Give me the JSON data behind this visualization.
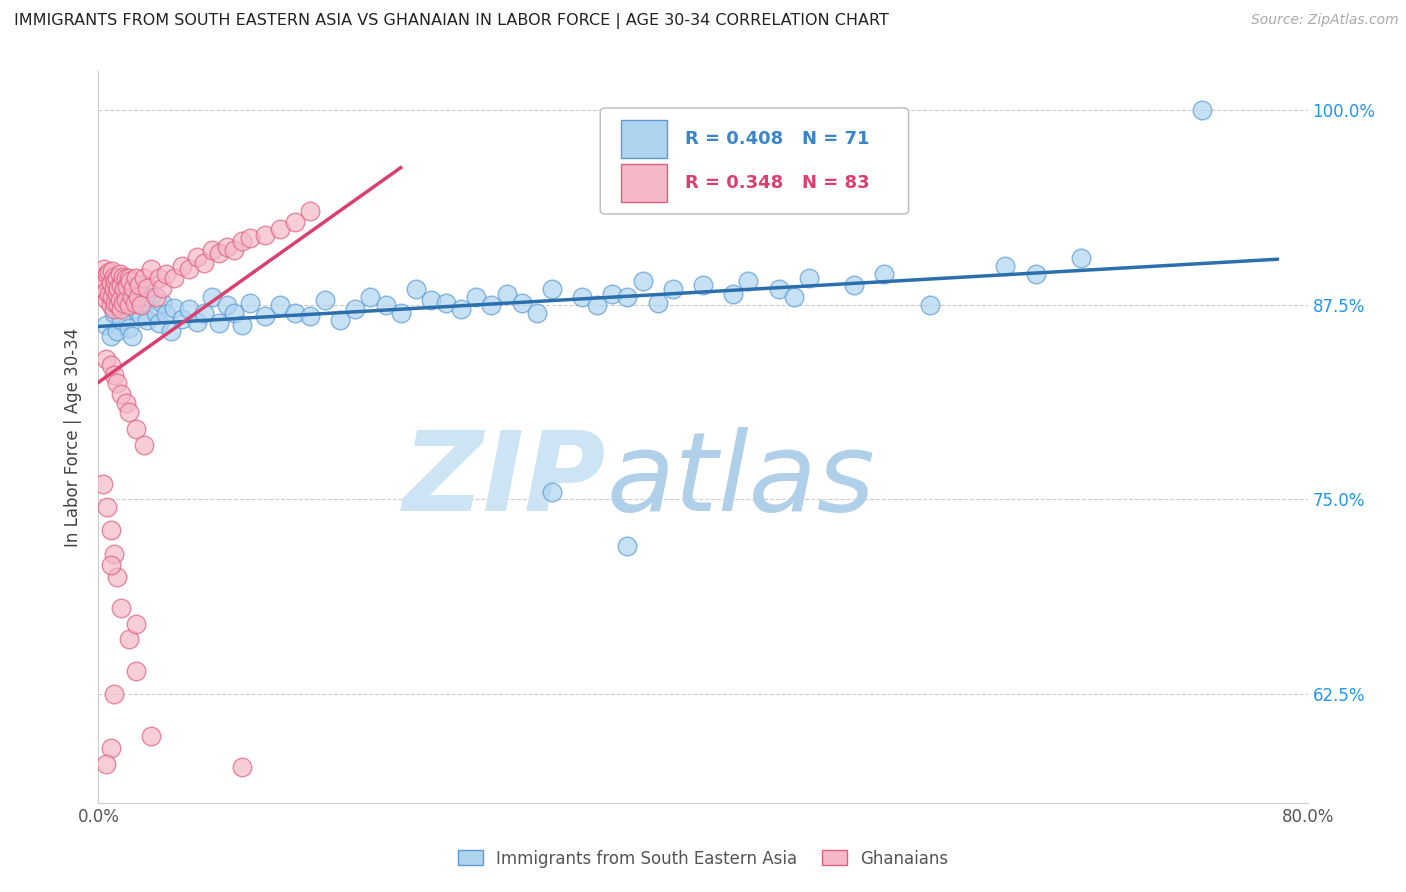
{
  "title": "IMMIGRANTS FROM SOUTH EASTERN ASIA VS GHANAIAN IN LABOR FORCE | AGE 30-34 CORRELATION CHART",
  "source": "Source: ZipAtlas.com",
  "ylabel": "In Labor Force | Age 30-34",
  "ylabel_ticks": [
    "62.5%",
    "75.0%",
    "87.5%",
    "100.0%"
  ],
  "ylabel_tick_vals": [
    0.625,
    0.75,
    0.875,
    1.0
  ],
  "xlim": [
    0.0,
    0.8
  ],
  "ylim": [
    0.555,
    1.025
  ],
  "blue_R": 0.408,
  "blue_N": 71,
  "pink_R": 0.348,
  "pink_N": 83,
  "blue_label": "Immigrants from South Eastern Asia",
  "pink_label": "Ghanaians",
  "blue_color": "#aed4f0",
  "blue_edge": "#5b9bd5",
  "pink_color": "#f4b8c8",
  "pink_edge": "#e06080",
  "blue_line_color": "#2c6fad",
  "pink_line_color": "#d94070",
  "watermark_zip_color": "#cde4f5",
  "watermark_atlas_color": "#b0cfe8"
}
